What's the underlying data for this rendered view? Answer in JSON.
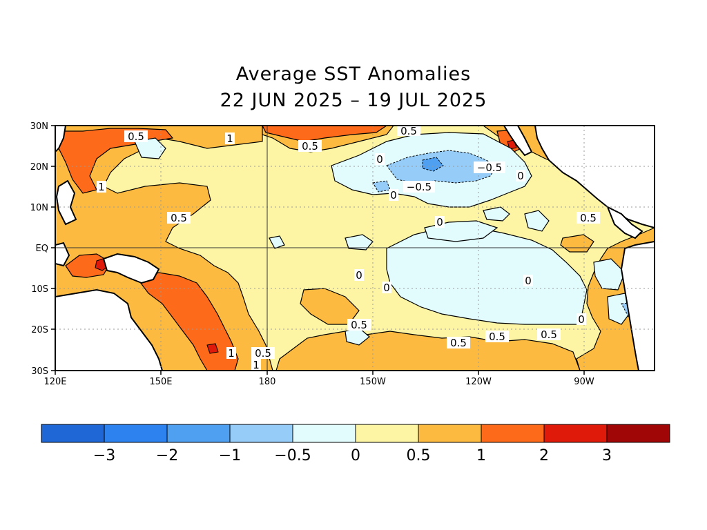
{
  "title": {
    "line1": "Average SST Anomalies",
    "line2": "22 JUN 2025 – 19 JUL 2025"
  },
  "map": {
    "lon_range": [
      "120E",
      "70W"
    ],
    "lat_range": [
      "30S",
      "30N"
    ],
    "lat_ticks": [
      "30N",
      "20N",
      "10N",
      "EQ",
      "10S",
      "20S",
      "30S"
    ],
    "lon_ticks": [
      "120E",
      "150E",
      "180",
      "150W",
      "120W",
      "90W"
    ],
    "contour_labels": {
      "c1": "0.5",
      "c2": "1",
      "c3": "0.5",
      "c4": "0.5",
      "c5": "0",
      "c6": "−0.5",
      "c7": "−0.5",
      "c8": "0",
      "c9": "0",
      "c10": "1",
      "c11": "0.5",
      "c12": "0",
      "c13": "0.5",
      "c14": "0",
      "c15": "0",
      "c16": "0",
      "c17": "0",
      "c18": "0.5",
      "c19": "0.5",
      "c20": "0.5",
      "c21": "0.5",
      "c22": "1",
      "c23": "0.5",
      "c24": "1"
    }
  },
  "colorbar": {
    "colors": [
      "#1f66d6",
      "#2d82f0",
      "#4fa0f0",
      "#96ccf8",
      "#e2fbfd",
      "#fdf5a4",
      "#fdba40",
      "#fd6a19",
      "#df1a0a",
      "#a10606"
    ],
    "labels": [
      "−3",
      "−2",
      "−1",
      "−0.5",
      "0",
      "0.5",
      "1",
      "2",
      "3"
    ]
  },
  "palette": {
    "land": "#ffffff",
    "frame": "#000000",
    "grid": "#999999"
  }
}
